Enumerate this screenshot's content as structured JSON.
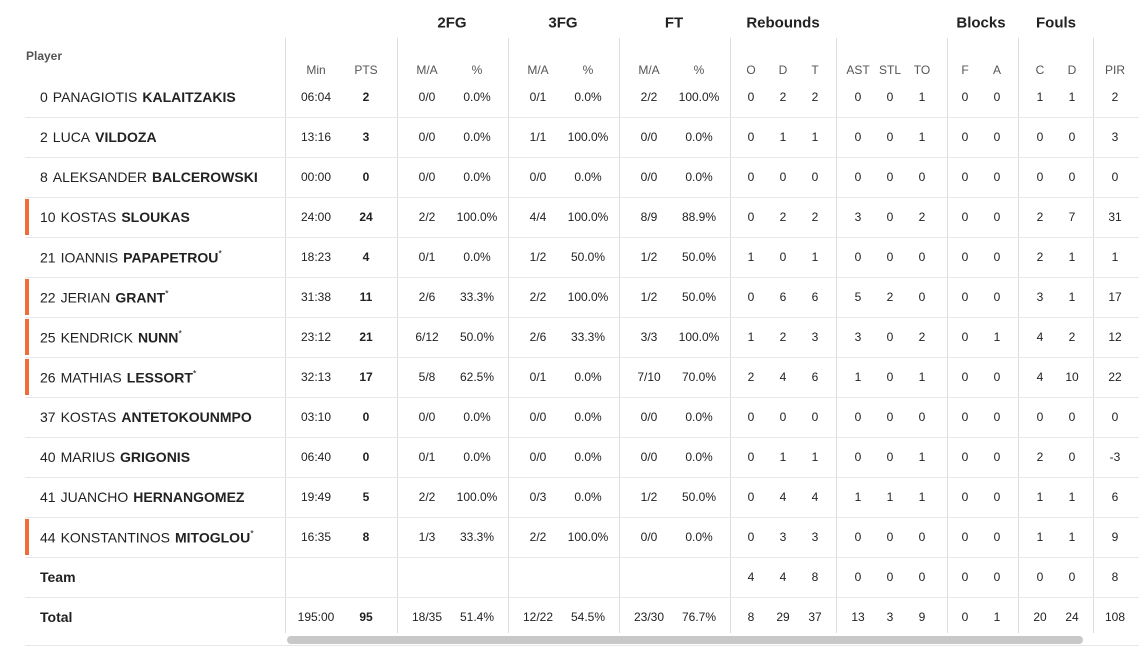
{
  "groups": [
    "2FG",
    "3FG",
    "FT",
    "Rebounds",
    "Blocks",
    "Fouls"
  ],
  "columns": [
    "Player",
    "Min",
    "PTS",
    "M/A",
    "%",
    "M/A",
    "%",
    "M/A",
    "%",
    "O",
    "D",
    "T",
    "AST",
    "STL",
    "TO",
    "F",
    "A",
    "C",
    "D",
    "PIR"
  ],
  "players": [
    {
      "number": 0,
      "first": "PANAGIOTIS",
      "last": "KALAITZAKIS",
      "highlight": false,
      "cells": [
        "06:04",
        2,
        "0/0",
        "0.0%",
        "0/1",
        "0.0%",
        "2/2",
        "100.0%",
        0,
        2,
        2,
        0,
        0,
        1,
        0,
        0,
        1,
        1,
        2
      ]
    },
    {
      "number": 2,
      "first": "LUCA",
      "last": "VILDOZA",
      "highlight": false,
      "cells": [
        "13:16",
        3,
        "0/0",
        "0.0%",
        "1/1",
        "100.0%",
        "0/0",
        "0.0%",
        0,
        1,
        1,
        0,
        0,
        1,
        0,
        0,
        0,
        0,
        3
      ]
    },
    {
      "number": 8,
      "first": "ALEKSANDER",
      "last": "BALCEROWSKI",
      "highlight": false,
      "cells": [
        "00:00",
        0,
        "0/0",
        "0.0%",
        "0/0",
        "0.0%",
        "0/0",
        "0.0%",
        0,
        0,
        0,
        0,
        0,
        0,
        0,
        0,
        0,
        0,
        0
      ]
    },
    {
      "number": 10,
      "first": "KOSTAS",
      "last": "SLOUKAS",
      "highlight": true,
      "cells": [
        "24:00",
        24,
        "2/2",
        "100.0%",
        "4/4",
        "100.0%",
        "8/9",
        "88.9%",
        0,
        2,
        2,
        3,
        0,
        2,
        0,
        0,
        2,
        7,
        31
      ]
    },
    {
      "number": 21,
      "first": "IOANNIS",
      "last": "PAPAPETROU",
      "star": "*",
      "highlight": false,
      "cells": [
        "18:23",
        4,
        "0/1",
        "0.0%",
        "1/2",
        "50.0%",
        "1/2",
        "50.0%",
        1,
        0,
        1,
        0,
        0,
        0,
        0,
        0,
        2,
        1,
        1
      ]
    },
    {
      "number": 22,
      "first": "JERIAN",
      "last": "GRANT",
      "star": "*",
      "highlight": true,
      "cells": [
        "31:38",
        11,
        "2/6",
        "33.3%",
        "2/2",
        "100.0%",
        "1/2",
        "50.0%",
        0,
        6,
        6,
        5,
        2,
        0,
        0,
        0,
        3,
        1,
        17
      ]
    },
    {
      "number": 25,
      "first": "KENDRICK",
      "last": "NUNN",
      "star": "*",
      "highlight": true,
      "cells": [
        "23:12",
        21,
        "6/12",
        "50.0%",
        "2/6",
        "33.3%",
        "3/3",
        "100.0%",
        1,
        2,
        3,
        3,
        0,
        2,
        0,
        1,
        4,
        2,
        12
      ]
    },
    {
      "number": 26,
      "first": "MATHIAS",
      "last": "LESSORT",
      "star": "*",
      "highlight": true,
      "cells": [
        "32:13",
        17,
        "5/8",
        "62.5%",
        "0/1",
        "0.0%",
        "7/10",
        "70.0%",
        2,
        4,
        6,
        1,
        0,
        1,
        0,
        0,
        4,
        10,
        22
      ]
    },
    {
      "number": 37,
      "first": "KOSTAS",
      "last": "ANTETOKOUNMPO",
      "highlight": false,
      "cells": [
        "03:10",
        0,
        "0/0",
        "0.0%",
        "0/0",
        "0.0%",
        "0/0",
        "0.0%",
        0,
        0,
        0,
        0,
        0,
        0,
        0,
        0,
        0,
        0,
        0
      ]
    },
    {
      "number": 40,
      "first": "MARIUS",
      "last": "GRIGONIS",
      "highlight": false,
      "cells": [
        "06:40",
        0,
        "0/1",
        "0.0%",
        "0/0",
        "0.0%",
        "0/0",
        "0.0%",
        0,
        1,
        1,
        0,
        0,
        1,
        0,
        0,
        2,
        0,
        -3
      ]
    },
    {
      "number": 41,
      "first": "JUANCHO",
      "last": "HERNANGOMEZ",
      "highlight": false,
      "cells": [
        "19:49",
        5,
        "2/2",
        "100.0%",
        "0/3",
        "0.0%",
        "1/2",
        "50.0%",
        0,
        4,
        4,
        1,
        1,
        1,
        0,
        0,
        1,
        1,
        6
      ]
    },
    {
      "number": 44,
      "first": "KONSTANTINOS",
      "last": "MITOGLOU",
      "star": "*",
      "highlight": true,
      "cells": [
        "16:35",
        8,
        "1/3",
        "33.3%",
        "2/2",
        "100.0%",
        "0/0",
        "0.0%",
        0,
        3,
        3,
        0,
        0,
        0,
        0,
        0,
        1,
        1,
        9
      ]
    }
  ],
  "totals": [
    {
      "label": "Team",
      "cells": [
        null,
        null,
        null,
        null,
        null,
        null,
        null,
        null,
        4,
        4,
        8,
        0,
        0,
        0,
        0,
        0,
        0,
        0,
        8
      ]
    },
    {
      "label": "Total",
      "cells": [
        "195:00",
        95,
        "18/35",
        "51.4%",
        "12/22",
        "54.5%",
        "23/30",
        "76.7%",
        8,
        29,
        37,
        13,
        3,
        9,
        0,
        1,
        20,
        24,
        108
      ]
    }
  ]
}
